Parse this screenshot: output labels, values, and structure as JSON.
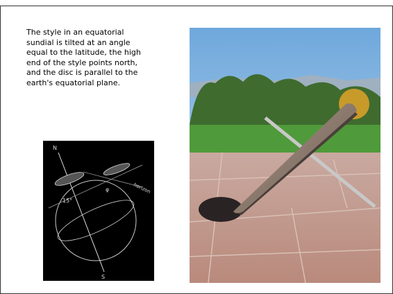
{
  "slide": {
    "text_lines": [
      "The style in an equatorial",
      "sundial is tilted at an angle",
      "equal to the latitude, the high",
      "end of the style points north,",
      "and the disc is parallel to the",
      "earth's equatorial plane."
    ],
    "diagram": {
      "north": "N",
      "south": "S",
      "angle": "15°",
      "latitude": "φ",
      "horizon": "horizon"
    }
  }
}
